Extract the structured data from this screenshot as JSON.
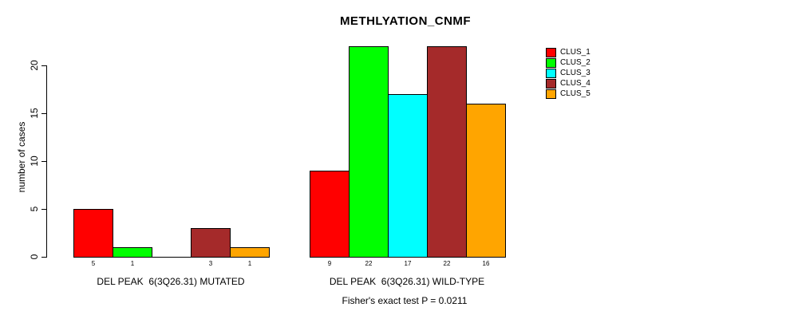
{
  "chart_data": {
    "type": "bar",
    "title": "METHLYATION_CNMF",
    "ylabel": "number of cases",
    "xlabel": "",
    "ylim": [
      0,
      22
    ],
    "y_ticks": [
      0,
      5,
      10,
      15,
      20
    ],
    "grid": false,
    "legend_position": "right",
    "series_names": [
      "CLUS_1",
      "CLUS_2",
      "CLUS_3",
      "CLUS_4",
      "CLUS_5"
    ],
    "series_colors": [
      "#FF0000",
      "#00FF00",
      "#00FFFF",
      "#A52A2A",
      "#FFA500"
    ],
    "groups": [
      {
        "label": "DEL PEAK  6(3Q26.31) MUTATED",
        "values": [
          5,
          1,
          0,
          3,
          1
        ],
        "bar_labels": [
          "5",
          "1",
          "",
          "3",
          "1"
        ]
      },
      {
        "label": "DEL PEAK  6(3Q26.31) WILD-TYPE",
        "values": [
          9,
          22,
          17,
          22,
          16
        ],
        "bar_labels": [
          "9",
          "22",
          "17",
          "22",
          "16"
        ]
      }
    ],
    "annotation": "Fisher's exact test P = 0.0211"
  },
  "legend": {
    "items": [
      {
        "label": "CLUS_1",
        "color": "#FF0000"
      },
      {
        "label": "CLUS_2",
        "color": "#00FF00"
      },
      {
        "label": "CLUS_3",
        "color": "#00FFFF"
      },
      {
        "label": "CLUS_4",
        "color": "#A52A2A"
      },
      {
        "label": "CLUS_5",
        "color": "#FFA500"
      }
    ]
  },
  "colors": {
    "background": "#FFFFFF",
    "axis": "#000000",
    "text": "#000000"
  }
}
